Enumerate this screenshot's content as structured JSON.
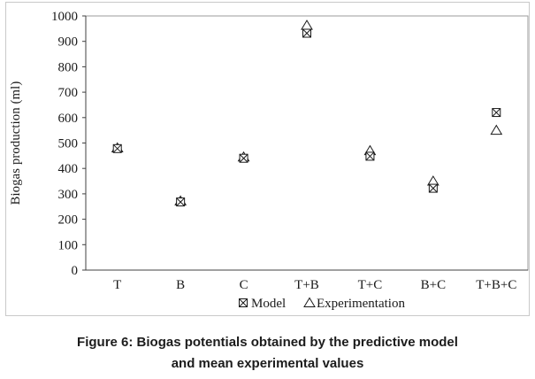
{
  "chart_data": {
    "type": "scatter",
    "categories": [
      "T",
      "B",
      "C",
      "T+B",
      "T+C",
      "B+C",
      "T+B+C"
    ],
    "series": [
      {
        "name": "Model",
        "marker": "boxed-x",
        "values": [
          478,
          268,
          440,
          932,
          448,
          322,
          620
        ]
      },
      {
        "name": "Experimentation",
        "marker": "triangle",
        "values": [
          481,
          272,
          445,
          963,
          470,
          350,
          550
        ]
      }
    ],
    "title": "",
    "xlabel": "",
    "ylabel": "Biogas production (ml)",
    "ylim": [
      0,
      1000
    ],
    "ytick_step": 100,
    "grid": false,
    "legend_position": "bottom"
  },
  "legend": {
    "model_label": "Model",
    "model_marker_icon": "boxed-x-marker-icon",
    "experimentation_label": "Experimentation",
    "experimentation_marker_icon": "triangle-marker-icon"
  },
  "caption": {
    "line1": "Figure 6: Biogas potentials obtained by the predictive model",
    "line2": "and mean experimental values"
  },
  "colors": {
    "marker_stroke": "#1a1a1a",
    "marker_fill": "#ffffff",
    "axis": "#404040",
    "plot_frame": "#9b9b9b",
    "outer_border": "#c9c9c9",
    "text": "#1a1a1a",
    "background": "#ffffff"
  }
}
